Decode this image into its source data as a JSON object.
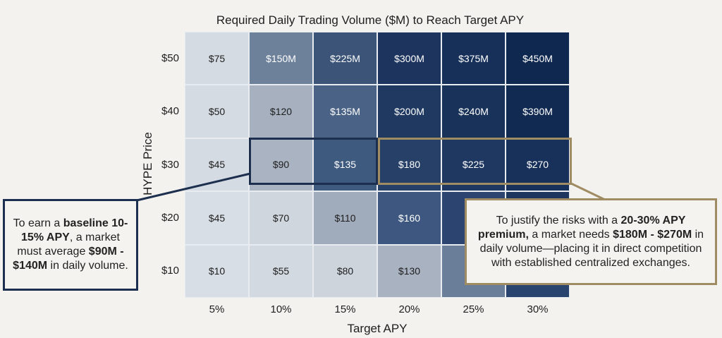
{
  "chart_data": {
    "type": "heatmap",
    "title": "Required Daily Trading Volume ($M) to Reach Target APY",
    "xlabel": "Target APY",
    "ylabel": "HYPE Price",
    "x_categories": [
      "5%",
      "10%",
      "15%",
      "20%",
      "25%",
      "30%"
    ],
    "y_categories": [
      "$50",
      "$40",
      "$30",
      "$20",
      "$10"
    ],
    "cells": [
      [
        "$75",
        "$150M",
        "$225M",
        "$300M",
        "$375M",
        "$450M"
      ],
      [
        "$50",
        "$120",
        "$135M",
        "$200M",
        "$240M",
        "$390M"
      ],
      [
        "$45",
        "$90",
        "$135",
        "$180",
        "$225",
        "$270"
      ],
      [
        "$45",
        "$70",
        "$110",
        "$160",
        null,
        null
      ],
      [
        "$10",
        "$55",
        "$80",
        "$130",
        null,
        null
      ]
    ],
    "colors": [
      [
        "#d5dbe2",
        "#6e819b",
        "#3b5478",
        "#1c345e",
        "#16305a",
        "#0f2850"
      ],
      [
        "#d5dbe2",
        "#a6b0bf",
        "#4a6285",
        "#1f3961",
        "#183259",
        "#112a52"
      ],
      [
        "#d5dbe2",
        "#aab3c1",
        "#3f5a7f",
        "#264068",
        "#1e3861",
        "#18315a"
      ],
      [
        "#d8dee5",
        "#d0d6de",
        "#a0abbb",
        "#3d5780",
        "#2b4570",
        "#1c365e"
      ],
      [
        "#d8dee5",
        "#d3d9e1",
        "#cdd4dc",
        "#a8b2c1",
        "#6b7e99",
        "#2a4470"
      ]
    ],
    "highlights": [
      {
        "row": "$30",
        "columns": [
          "10%",
          "15%"
        ],
        "color": "#1c2f4f"
      },
      {
        "row": "$30",
        "columns": [
          "20%",
          "25%",
          "30%"
        ],
        "color": "#a08c62"
      }
    ],
    "annotations": {
      "baseline": {
        "t1": "To earn a ",
        "b1": "baseline 10-15% APY",
        "t2": ", a market must average ",
        "b2": "$90M - $140M",
        "t3": " in daily volume."
      },
      "premium": {
        "t1": "To justify the risks with a ",
        "b1": "20-30% APY premium,",
        "t2": " a market needs ",
        "b2": "$180M - $270M",
        "t3": " in daily volume—placing it in direct competition with established centralized exchanges."
      }
    }
  }
}
